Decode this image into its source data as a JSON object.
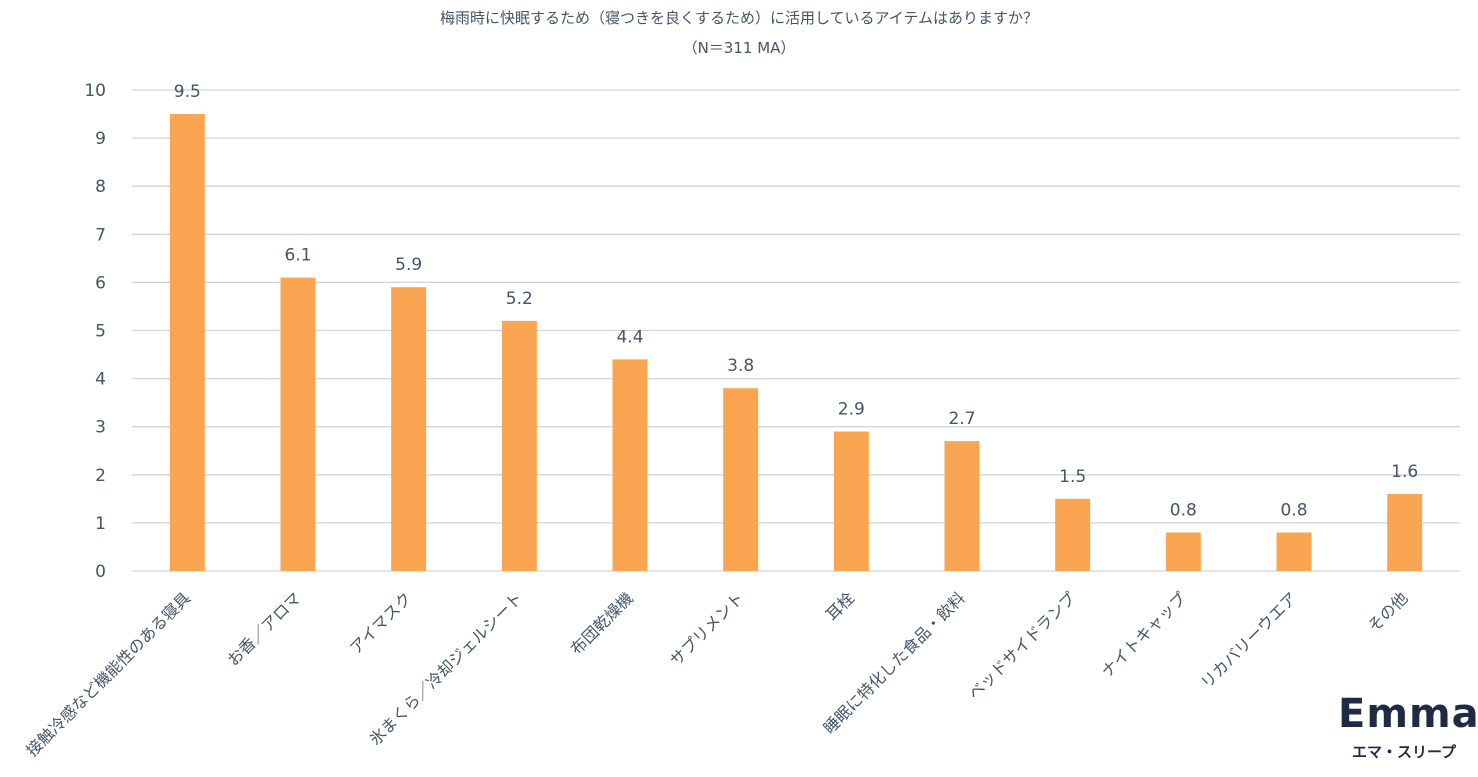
{
  "chart_data": {
    "type": "bar",
    "title": "梅雨時に快眠するため（寝つきを良くするため）に活用しているアイテムはありますか？",
    "subtitle": "（N＝311 MA）",
    "categories": [
      "接触冷感など機能性のある寝具",
      "お香／アロマ",
      "アイマスク",
      "氷まくら／冷却ジェルシート",
      "布団乾燥機",
      "サプリメント",
      "耳栓",
      "睡眠に特化した食品・飲料",
      "ベッドサイドランプ",
      "ナイトキャップ",
      "リカバリーウエア",
      "その他"
    ],
    "values": [
      9.5,
      6.1,
      5.9,
      5.2,
      4.4,
      3.8,
      2.9,
      2.7,
      1.5,
      0.8,
      0.8,
      1.6
    ],
    "data_labels": [
      "9.5",
      "6.1",
      "5.9",
      "5.2",
      "4.4",
      "3.8",
      "2.9",
      "2.7",
      "1.5",
      "0.8",
      "0.8",
      "1.6"
    ],
    "ylim": [
      0,
      10
    ],
    "yticks": [
      "0",
      "1",
      "2",
      "3",
      "4",
      "5",
      "6",
      "7",
      "8",
      "9",
      "10"
    ],
    "xlabel": "",
    "ylabel": "",
    "grid": true,
    "bar_color": "#f9a552",
    "grid_color": "#d0d4dc",
    "text_color": "#44546a"
  },
  "logo": {
    "wordmark": "Emma",
    "subtitle": "エマ・スリープ"
  }
}
